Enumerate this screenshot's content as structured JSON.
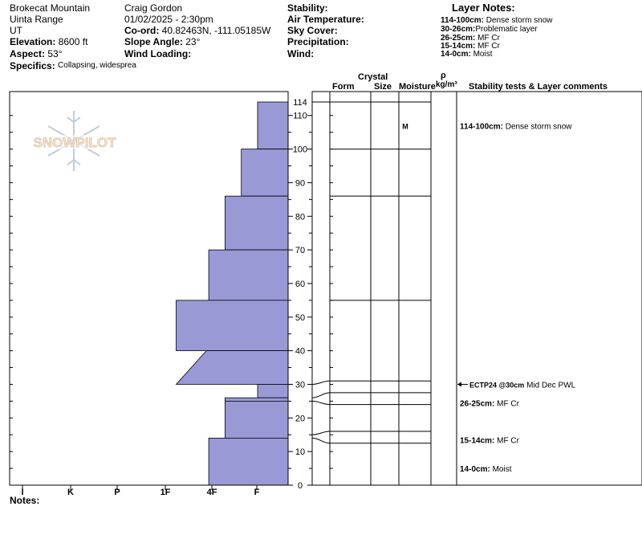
{
  "header": {
    "location": "Brokecat Mountain",
    "range": "Uinta Range",
    "state": "UT",
    "elevation_label": "Elevation:",
    "elevation_value": "8600 ft",
    "aspect_label": "Aspect:",
    "aspect_value": "53°",
    "specifics_label": "Specifics:",
    "specifics_value": "Collapsing, widespread",
    "observer": "Craig Gordon",
    "datetime": "01/02/2025 - 2:30pm",
    "coord_label": "Co-ord:",
    "coord_value": "40.82463N, -111.05185W",
    "slope_label": "Slope Angle:",
    "slope_value": "23°",
    "wind_loading_label": "Wind Loading:",
    "stability_label": "Stability:",
    "air_temp_label": "Air Temperature:",
    "sky_cover_label": "Sky Cover:",
    "precip_label": "Precipitation:",
    "wind_label": "Wind:",
    "layer_notes_title": "Layer Notes:",
    "layer_notes": [
      {
        "range": "114-100cm:",
        "text": "Dense storm snow"
      },
      {
        "range": "30-26cm:",
        "text": "Problematic layer"
      },
      {
        "range": "26-25cm:",
        "text": "MF Cr"
      },
      {
        "range": "15-14cm:",
        "text": "MF Cr"
      },
      {
        "range": "14-0cm:",
        "text": "Moist"
      }
    ],
    "notes_label": "Notes:"
  },
  "logo_text": "SNOWPILOT",
  "columns": {
    "crystal": "Crystal",
    "form": "Form",
    "size": "Size",
    "moisture": "Moisture",
    "rho": "ρ",
    "density_unit": "kg/m³",
    "comments": "Stability tests & Layer comments"
  },
  "chart_data": {
    "type": "area",
    "title": "",
    "xlabel": "",
    "ylabel": "",
    "x_categories": [
      "I",
      "K",
      "P",
      "1F",
      "4F",
      "F"
    ],
    "x_direction": "decreasing hardness left to right",
    "y_ticks": [
      0,
      10,
      20,
      30,
      40,
      50,
      60,
      70,
      80,
      90,
      100,
      110,
      114
    ],
    "ylim": [
      0,
      114
    ],
    "hardness_layers": [
      {
        "bottom": 100,
        "top": 114,
        "hardness": "F",
        "hardness_index": 1.0
      },
      {
        "bottom": 86,
        "top": 100,
        "hardness": "F+",
        "hardness_index": 1.35
      },
      {
        "bottom": 70,
        "top": 86,
        "hardness": "4F-",
        "hardness_index": 1.7
      },
      {
        "bottom": 55,
        "top": 70,
        "hardness": "4F",
        "hardness_index": 2.05
      },
      {
        "bottom": 40,
        "top": 55,
        "hardness": "1F+",
        "hardness_index": 2.75
      },
      {
        "bottom": 30,
        "top": 40,
        "hardness_top": 2.1,
        "hardness_bottom": 2.75
      },
      {
        "bottom": 26,
        "top": 30,
        "hardness": "F",
        "hardness_index": 1.0
      },
      {
        "bottom": 25,
        "top": 26,
        "hardness": "4F",
        "hardness_index": 1.7
      },
      {
        "bottom": 14,
        "top": 25,
        "hardness": "4F",
        "hardness_index": 1.7
      },
      {
        "bottom": 0,
        "top": 14,
        "hardness": "4F-",
        "hardness_index": 2.05
      }
    ],
    "layer_boundaries": [
      114,
      100,
      86,
      55,
      31,
      27.5,
      24,
      16,
      12.5
    ],
    "moisture": [
      {
        "depth": 107,
        "value": "M"
      }
    ],
    "comments": [
      {
        "depth": 107,
        "range": "114-100cm:",
        "text": "Dense storm snow"
      },
      {
        "depth": 30,
        "range": "ECTP24 @30cm",
        "text": "Mid Dec PWL",
        "arrow": true
      },
      {
        "depth": 24.5,
        "range": "26-25cm:",
        "text": "MF Cr"
      },
      {
        "depth": 13.5,
        "range": "15-14cm:",
        "text": "MF Cr"
      },
      {
        "depth": 5,
        "range": "14-0cm:",
        "text": "Moist"
      }
    ],
    "fill_color": "#9999d6"
  }
}
